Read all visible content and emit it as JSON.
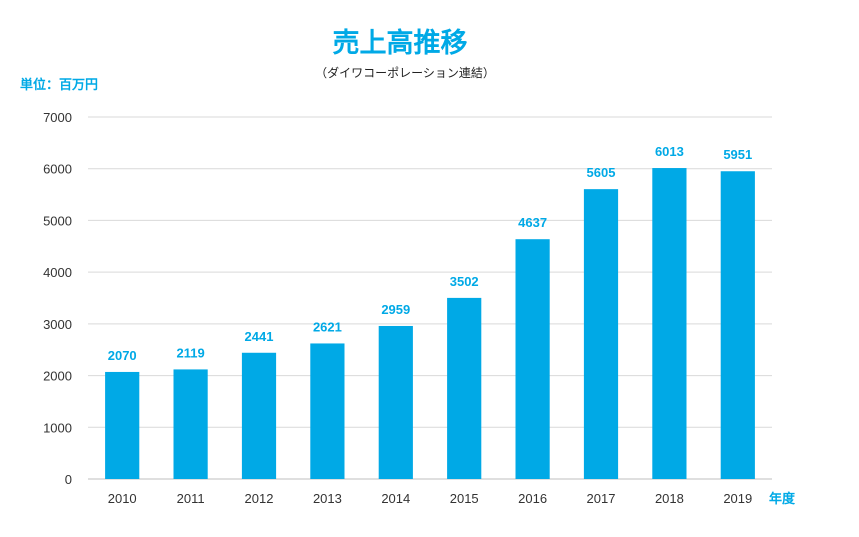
{
  "colors": {
    "accent": "#00A9E6",
    "grid": "#D9D9D9"
  },
  "chart_data": {
    "type": "bar",
    "title": "売上高推移",
    "subtitle": "（ダイワコーポレーション連結）",
    "ylabel": "単位：百万円",
    "xlabel": "年度",
    "categories": [
      "2010",
      "2011",
      "2012",
      "2013",
      "2014",
      "2015",
      "2016",
      "2017",
      "2018",
      "2019"
    ],
    "values": [
      2070,
      2119,
      2441,
      2621,
      2959,
      3502,
      4637,
      5605,
      6013,
      5951
    ],
    "ylim": [
      0,
      7000
    ],
    "yticks": [
      "0",
      "1000",
      "2000",
      "3000",
      "4000",
      "5000",
      "6000",
      "7000"
    ],
    "grid": true,
    "legend": "none",
    "data_labels": true
  }
}
